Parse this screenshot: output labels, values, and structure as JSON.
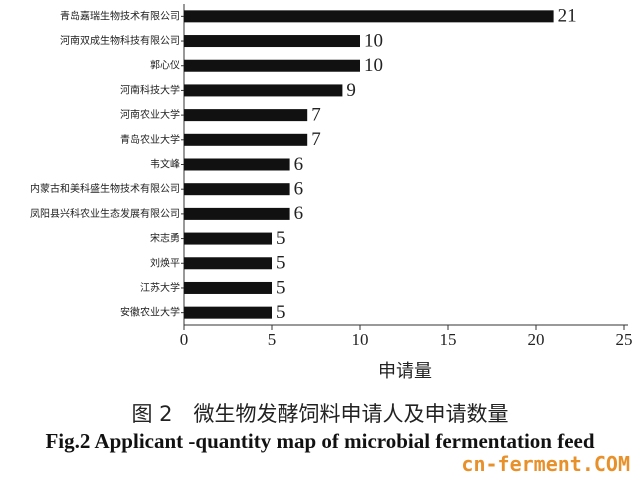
{
  "chart_data": {
    "type": "barh",
    "categories": [
      "青岛嘉瑞生物技术有限公司",
      "河南双成生物科技有限公司",
      "郭心仪",
      "河南科技大学",
      "河南农业大学",
      "青岛农业大学",
      "韦文峰",
      "内蒙古和美科盛生物技术有限公司",
      "凤阳县兴科农业生态发展有限公司",
      "宋志勇",
      "刘焕平",
      "江苏大学",
      "安徽农业大学"
    ],
    "values": [
      21,
      10,
      10,
      9,
      7,
      7,
      6,
      6,
      6,
      5,
      5,
      5,
      5
    ],
    "color": "#111111",
    "xlim": [
      0,
      25
    ],
    "xticks": [
      0,
      5,
      10,
      15,
      20,
      25
    ],
    "xlabel": "申请量",
    "caption_cn": "图 2　微生物发酵饲料申请人及申请数量",
    "caption_en": "Fig.2 Applicant -quantity map of microbial fermentation feed"
  },
  "watermark": "cn-ferment.COM"
}
